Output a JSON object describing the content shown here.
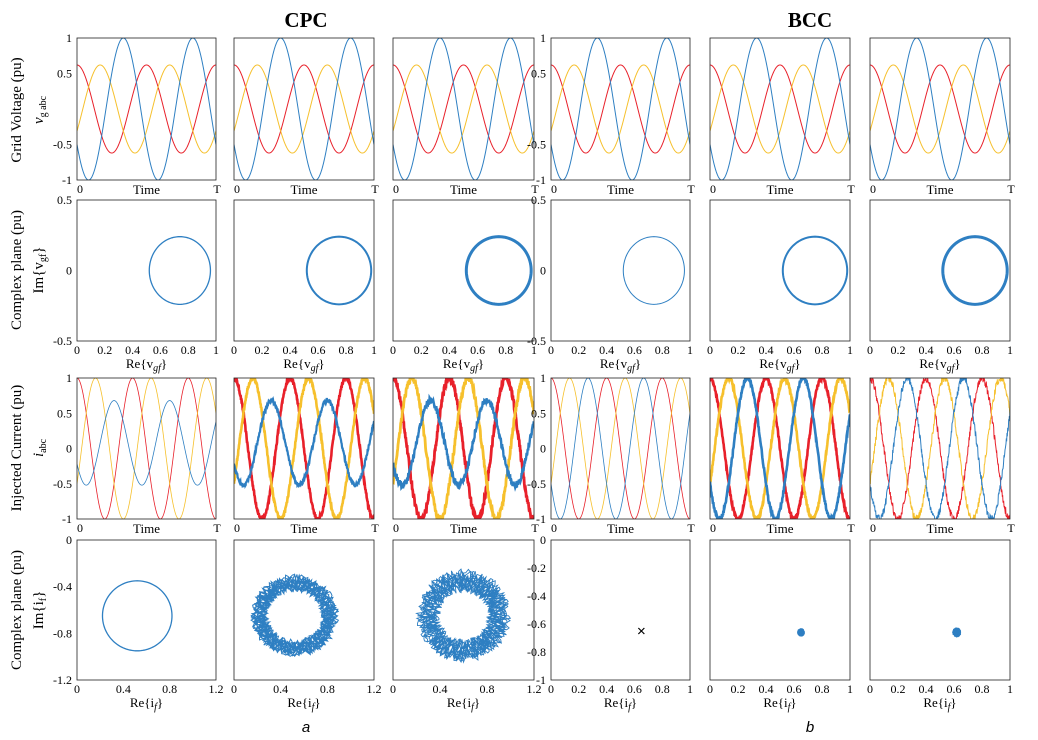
{
  "figure": {
    "group_titles": [
      "CPC",
      "BCC"
    ],
    "sub_labels": [
      "a",
      "b"
    ],
    "row_labels": [
      {
        "line1": "Grid Voltage (pu)",
        "line2": "v",
        "line2_sub": "g abc"
      },
      {
        "line1": "Complex plane (pu)",
        "line2": "Im{v",
        "line2_sub": "gf",
        "line2_end": "}"
      },
      {
        "line1": "Injected Current (pu)",
        "line2": "i",
        "line2_sub": "abc"
      },
      {
        "line1": "Complex plane (pu)",
        "line2": "Im{i",
        "line2_sub": "f",
        "line2_end": "}"
      }
    ],
    "x_labels": {
      "time": "Time",
      "re_v": {
        "text": "Re{v",
        "sub": "gf",
        "end": "}"
      },
      "re_i": {
        "text": "Re{i",
        "sub": "f",
        "end": "}"
      }
    },
    "colors": {
      "phase_a": "#e8202a",
      "phase_b": "#f6c02c",
      "phase_c": "#2e7fc2",
      "marker": "#000000"
    }
  },
  "chart_data": [
    {
      "type": "line",
      "row": "grid-voltage",
      "group": "CPC",
      "column": 1,
      "x_ticks": [
        "0",
        "T"
      ],
      "xlabel": "Time",
      "ylim": [
        -1,
        1
      ],
      "y_ticks": [
        "1",
        "0.5",
        "-0.5",
        "-1"
      ],
      "series": [
        {
          "color": "#e8202a",
          "amplitude": 0.62,
          "cycles": 2,
          "phase_deg": 0
        },
        {
          "color": "#f6c02c",
          "amplitude": 0.62,
          "cycles": 2,
          "phase_deg": -120
        },
        {
          "color": "#2e7fc2",
          "amplitude": 1.0,
          "cycles": 2,
          "phase_deg": 120
        }
      ]
    },
    {
      "type": "line",
      "row": "grid-voltage",
      "group": "CPC",
      "column": 2,
      "x_ticks": [
        "0",
        "T"
      ],
      "xlabel": "Time",
      "ylim": [
        -1,
        1
      ],
      "series": [
        {
          "color": "#e8202a",
          "amplitude": 0.62,
          "cycles": 2,
          "phase_deg": 0
        },
        {
          "color": "#f6c02c",
          "amplitude": 0.62,
          "cycles": 2,
          "phase_deg": -120
        },
        {
          "color": "#2e7fc2",
          "amplitude": 1.0,
          "cycles": 2,
          "phase_deg": 120
        }
      ]
    },
    {
      "type": "line",
      "row": "grid-voltage",
      "group": "CPC",
      "column": 3,
      "x_ticks": [
        "0",
        "T"
      ],
      "xlabel": "Time",
      "ylim": [
        -1,
        1
      ],
      "series": [
        {
          "color": "#e8202a",
          "amplitude": 0.62,
          "cycles": 2,
          "phase_deg": 0
        },
        {
          "color": "#f6c02c",
          "amplitude": 0.62,
          "cycles": 2,
          "phase_deg": -120
        },
        {
          "color": "#2e7fc2",
          "amplitude": 1.0,
          "cycles": 2,
          "phase_deg": 120
        }
      ]
    },
    {
      "type": "line",
      "row": "grid-voltage",
      "group": "BCC",
      "column": 1,
      "x_ticks": [
        "0",
        "T"
      ],
      "xlabel": "Time",
      "ylim": [
        -1,
        1
      ],
      "y_ticks": [
        "1",
        "0.5",
        "-0.5",
        "-1"
      ],
      "series": [
        {
          "color": "#e8202a",
          "amplitude": 0.62,
          "cycles": 2,
          "phase_deg": 0
        },
        {
          "color": "#f6c02c",
          "amplitude": 0.62,
          "cycles": 2,
          "phase_deg": -120
        },
        {
          "color": "#2e7fc2",
          "amplitude": 1.0,
          "cycles": 2,
          "phase_deg": 120
        }
      ]
    },
    {
      "type": "line",
      "row": "grid-voltage",
      "group": "BCC",
      "column": 2,
      "x_ticks": [
        "0",
        "T"
      ],
      "xlabel": "Time",
      "ylim": [
        -1,
        1
      ],
      "series": [
        {
          "color": "#e8202a",
          "amplitude": 0.62,
          "cycles": 2,
          "phase_deg": 0
        },
        {
          "color": "#f6c02c",
          "amplitude": 0.62,
          "cycles": 2,
          "phase_deg": -120
        },
        {
          "color": "#2e7fc2",
          "amplitude": 1.0,
          "cycles": 2,
          "phase_deg": 120
        }
      ]
    },
    {
      "type": "line",
      "row": "grid-voltage",
      "group": "BCC",
      "column": 3,
      "x_ticks": [
        "0",
        "T"
      ],
      "xlabel": "Time",
      "ylim": [
        -1,
        1
      ],
      "series": [
        {
          "color": "#e8202a",
          "amplitude": 0.62,
          "cycles": 2,
          "phase_deg": 0
        },
        {
          "color": "#f6c02c",
          "amplitude": 0.62,
          "cycles": 2,
          "phase_deg": -120
        },
        {
          "color": "#2e7fc2",
          "amplitude": 1.0,
          "cycles": 2,
          "phase_deg": 120
        }
      ]
    },
    {
      "type": "scatter",
      "row": "complex-voltage",
      "group": "CPC",
      "column": 1,
      "xlim": [
        0,
        1
      ],
      "ylim": [
        -0.5,
        0.5
      ],
      "x_ticks": [
        "0",
        "0.2",
        "0.4",
        "0.6",
        "0.8",
        "1"
      ],
      "y_ticks": [
        "0.5",
        "0",
        "-0.5"
      ],
      "circles": [
        {
          "color": "#2e7fc2",
          "center": [
            0.74,
            0
          ],
          "radius_x": 0.22,
          "radius_y": 0.24,
          "noise": 0,
          "width": 1.3
        }
      ]
    },
    {
      "type": "scatter",
      "row": "complex-voltage",
      "group": "CPC",
      "column": 2,
      "xlim": [
        0,
        1
      ],
      "ylim": [
        -0.5,
        0.5
      ],
      "x_ticks": [
        "0",
        "0.2",
        "0.4",
        "0.6",
        "0.8",
        "1"
      ],
      "circles": [
        {
          "color": "#2e7fc2",
          "center": [
            0.75,
            0
          ],
          "radius_x": 0.23,
          "radius_y": 0.24,
          "noise": 0,
          "width": 2.0
        }
      ]
    },
    {
      "type": "scatter",
      "row": "complex-voltage",
      "group": "CPC",
      "column": 3,
      "xlim": [
        0,
        1
      ],
      "ylim": [
        -0.5,
        0.5
      ],
      "x_ticks": [
        "0",
        "0.2",
        "0.4",
        "0.6",
        "0.8",
        "1"
      ],
      "circles": [
        {
          "color": "#2e7fc2",
          "center": [
            0.75,
            0
          ],
          "radius_x": 0.23,
          "radius_y": 0.24,
          "noise": 0,
          "width": 3.0
        }
      ]
    },
    {
      "type": "scatter",
      "row": "complex-voltage",
      "group": "BCC",
      "column": 1,
      "xlim": [
        0,
        1
      ],
      "ylim": [
        -0.5,
        0.5
      ],
      "x_ticks": [
        "0",
        "0.2",
        "0.4",
        "0.6",
        "0.8",
        "1"
      ],
      "y_ticks": [
        "0.5",
        "0",
        "-0.5"
      ],
      "circles": [
        {
          "color": "#2e7fc2",
          "center": [
            0.74,
            0
          ],
          "radius_x": 0.22,
          "radius_y": 0.24,
          "noise": 0,
          "width": 1.0
        }
      ]
    },
    {
      "type": "scatter",
      "row": "complex-voltage",
      "group": "BCC",
      "column": 2,
      "xlim": [
        0,
        1
      ],
      "ylim": [
        -0.5,
        0.5
      ],
      "x_ticks": [
        "0",
        "0.2",
        "0.4",
        "0.6",
        "0.8",
        "1"
      ],
      "circles": [
        {
          "color": "#2e7fc2",
          "center": [
            0.75,
            0
          ],
          "radius_x": 0.23,
          "radius_y": 0.24,
          "noise": 0,
          "width": 2.0
        }
      ]
    },
    {
      "type": "scatter",
      "row": "complex-voltage",
      "group": "BCC",
      "column": 3,
      "xlim": [
        0,
        1
      ],
      "ylim": [
        -0.5,
        0.5
      ],
      "x_ticks": [
        "0",
        "0.2",
        "0.4",
        "0.6",
        "0.8",
        "1"
      ],
      "circles": [
        {
          "color": "#2e7fc2",
          "center": [
            0.75,
            0
          ],
          "radius_x": 0.23,
          "radius_y": 0.24,
          "noise": 0,
          "width": 3.0
        }
      ]
    },
    {
      "type": "line",
      "row": "injected-current",
      "group": "CPC",
      "column": 1,
      "x_ticks": [
        "0",
        "T"
      ],
      "xlabel": "Time",
      "ylim": [
        -1,
        1
      ],
      "y_ticks": [
        "1",
        "0.5",
        "0",
        "-0.5",
        "-1"
      ],
      "series": [
        {
          "color": "#e8202a",
          "amplitude": 1.0,
          "cycles": 2.5,
          "phase_deg": 0,
          "offset": 0,
          "noise": 0,
          "width": 0.8
        },
        {
          "color": "#f6c02c",
          "amplitude": 1.0,
          "cycles": 2.5,
          "phase_deg": -120,
          "offset": 0,
          "noise": 0,
          "width": 0.8
        },
        {
          "color": "#2e7fc2",
          "amplitude": 0.6,
          "cycles": 2.5,
          "phase_deg": 120,
          "offset": 0.08,
          "noise": 0,
          "width": 0.8
        }
      ]
    },
    {
      "type": "line",
      "row": "injected-current",
      "group": "CPC",
      "column": 2,
      "x_ticks": [
        "0",
        "T"
      ],
      "xlabel": "Time",
      "ylim": [
        -1,
        1
      ],
      "series": [
        {
          "color": "#e8202a",
          "amplitude": 1.0,
          "cycles": 2.5,
          "phase_deg": 0,
          "offset": 0,
          "noise": 0.03,
          "width": 2.6
        },
        {
          "color": "#f6c02c",
          "amplitude": 1.0,
          "cycles": 2.5,
          "phase_deg": -120,
          "offset": 0,
          "noise": 0.03,
          "width": 2.6
        },
        {
          "color": "#2e7fc2",
          "amplitude": 0.6,
          "cycles": 2.5,
          "phase_deg": 120,
          "offset": 0.08,
          "noise": 0.03,
          "width": 2.2
        }
      ]
    },
    {
      "type": "line",
      "row": "injected-current",
      "group": "CPC",
      "column": 3,
      "x_ticks": [
        "0",
        "T"
      ],
      "xlabel": "Time",
      "ylim": [
        -1,
        1
      ],
      "series": [
        {
          "color": "#e8202a",
          "amplitude": 1.0,
          "cycles": 2.5,
          "phase_deg": 0,
          "offset": 0,
          "noise": 0.05,
          "width": 2.8
        },
        {
          "color": "#f6c02c",
          "amplitude": 1.0,
          "cycles": 2.5,
          "phase_deg": -120,
          "offset": 0,
          "noise": 0.05,
          "width": 2.8
        },
        {
          "color": "#2e7fc2",
          "amplitude": 0.6,
          "cycles": 2.5,
          "phase_deg": 120,
          "offset": 0.08,
          "noise": 0.05,
          "width": 2.4
        }
      ]
    },
    {
      "type": "line",
      "row": "injected-current",
      "group": "BCC",
      "column": 1,
      "x_ticks": [
        "0",
        "T"
      ],
      "xlabel": "Time",
      "ylim": [
        -1,
        1
      ],
      "y_ticks": [
        "1",
        "0.5",
        "0",
        "-0.5",
        "-1"
      ],
      "series": [
        {
          "color": "#e8202a",
          "amplitude": 1.0,
          "cycles": 2.5,
          "phase_deg": 0,
          "offset": 0,
          "noise": 0,
          "width": 0.8
        },
        {
          "color": "#f6c02c",
          "amplitude": 1.0,
          "cycles": 2.5,
          "phase_deg": -120,
          "offset": 0,
          "noise": 0,
          "width": 0.8
        },
        {
          "color": "#2e7fc2",
          "amplitude": 1.0,
          "cycles": 2.5,
          "phase_deg": 120,
          "offset": 0,
          "noise": 0,
          "width": 0.8
        }
      ]
    },
    {
      "type": "line",
      "row": "injected-current",
      "group": "BCC",
      "column": 2,
      "x_ticks": [
        "0",
        "T"
      ],
      "xlabel": "Time",
      "ylim": [
        -1,
        1
      ],
      "series": [
        {
          "color": "#e8202a",
          "amplitude": 1.0,
          "cycles": 2.5,
          "phase_deg": 0,
          "offset": 0,
          "noise": 0.03,
          "width": 2.6
        },
        {
          "color": "#f6c02c",
          "amplitude": 1.0,
          "cycles": 2.5,
          "phase_deg": -120,
          "offset": 0,
          "noise": 0.03,
          "width": 2.6
        },
        {
          "color": "#2e7fc2",
          "amplitude": 1.0,
          "cycles": 2.5,
          "phase_deg": 120,
          "offset": 0,
          "noise": 0.03,
          "width": 2.6
        }
      ]
    },
    {
      "type": "line",
      "row": "injected-current",
      "group": "BCC",
      "column": 3,
      "x_ticks": [
        "0",
        "T"
      ],
      "xlabel": "Time",
      "ylim": [
        -1,
        1
      ],
      "series": [
        {
          "color": "#e8202a",
          "amplitude": 1.0,
          "cycles": 2.5,
          "phase_deg": 0,
          "offset": 0,
          "noise": 0.06,
          "width": 1.0
        },
        {
          "color": "#f6c02c",
          "amplitude": 1.0,
          "cycles": 2.5,
          "phase_deg": -120,
          "offset": 0,
          "noise": 0.06,
          "width": 1.0
        },
        {
          "color": "#2e7fc2",
          "amplitude": 1.0,
          "cycles": 2.5,
          "phase_deg": 120,
          "offset": 0,
          "noise": 0.06,
          "width": 1.0
        }
      ]
    },
    {
      "type": "scatter",
      "row": "complex-current",
      "group": "CPC",
      "column": 1,
      "xlim": [
        0,
        1.2
      ],
      "ylim": [
        -1.2,
        0
      ],
      "x_ticks": [
        "0",
        "0.4",
        "0.8",
        "1.2"
      ],
      "y_ticks": [
        "0",
        "-0.4",
        "-0.8",
        "-1.2"
      ],
      "circles": [
        {
          "color": "#2e7fc2",
          "center": [
            0.52,
            -0.65
          ],
          "radius_x": 0.3,
          "radius_y": 0.3,
          "noise": 0,
          "width": 1.3,
          "loops": 1
        }
      ]
    },
    {
      "type": "scatter",
      "row": "complex-current",
      "group": "CPC",
      "column": 2,
      "xlim": [
        0,
        1.2
      ],
      "ylim": [
        -1.2,
        0
      ],
      "x_ticks": [
        "0",
        "0.4",
        "0.8",
        "1.2"
      ],
      "circles": [
        {
          "color": "#2e7fc2",
          "center": [
            0.52,
            -0.65
          ],
          "radius_x": 0.3,
          "radius_y": 0.28,
          "noise": 0.06,
          "width": 1.0,
          "loops": 14
        }
      ]
    },
    {
      "type": "scatter",
      "row": "complex-current",
      "group": "CPC",
      "column": 3,
      "xlim": [
        0,
        1.2
      ],
      "ylim": [
        -1.2,
        0
      ],
      "x_ticks": [
        "0",
        "0.4",
        "0.8",
        "1.2"
      ],
      "circles": [
        {
          "color": "#2e7fc2",
          "center": [
            0.6,
            -0.65
          ],
          "radius_x": 0.3,
          "radius_y": 0.3,
          "noise": 0.08,
          "width": 0.9,
          "loops": 14
        }
      ]
    },
    {
      "type": "scatter",
      "row": "complex-current",
      "group": "BCC",
      "column": 1,
      "xlim": [
        0,
        1
      ],
      "ylim": [
        -1,
        0
      ],
      "x_ticks": [
        "0",
        "0.2",
        "0.4",
        "0.6",
        "0.8",
        "1"
      ],
      "y_ticks": [
        "0",
        "-0.2",
        "-0.4",
        "-0.6",
        "-0.8",
        "-1"
      ],
      "points": [
        {
          "color": "#000000",
          "x": 0.65,
          "y": -0.65,
          "marker": "x"
        }
      ]
    },
    {
      "type": "scatter",
      "row": "complex-current",
      "group": "BCC",
      "column": 2,
      "xlim": [
        0,
        1
      ],
      "ylim": [
        -1,
        0
      ],
      "x_ticks": [
        "0",
        "0.2",
        "0.4",
        "0.6",
        "0.8",
        "1"
      ],
      "clusters": [
        {
          "color": "#2e7fc2",
          "x": 0.65,
          "y": -0.66,
          "spread": 0.025
        }
      ]
    },
    {
      "type": "scatter",
      "row": "complex-current",
      "group": "BCC",
      "column": 3,
      "xlim": [
        0,
        1
      ],
      "ylim": [
        -1,
        0
      ],
      "x_ticks": [
        "0",
        "0.2",
        "0.4",
        "0.6",
        "0.8",
        "1"
      ],
      "clusters": [
        {
          "color": "#2e7fc2",
          "x": 0.62,
          "y": -0.66,
          "spread": 0.03
        }
      ]
    }
  ]
}
